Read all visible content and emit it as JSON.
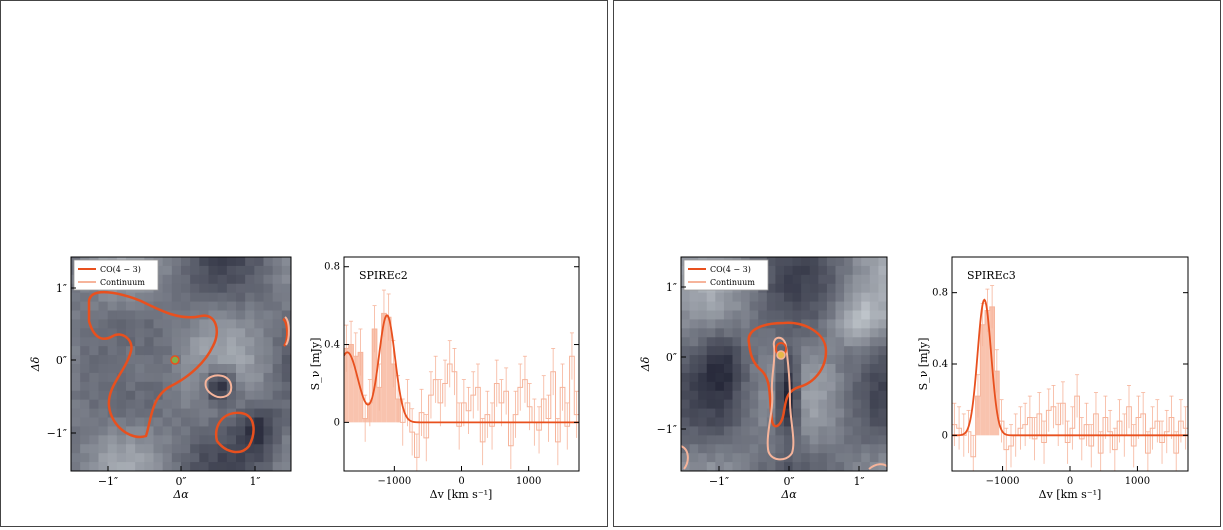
{
  "panels": [
    {
      "label": "SPIREc2",
      "map_axes": {
        "xlabel": "Δα",
        "ylabel": "Δδ",
        "xticks": [
          "−1″",
          "0″",
          "1″"
        ],
        "yticks": [
          "1″",
          "0″",
          "−1″"
        ],
        "legend": [
          "CO(4 − 3)",
          "Continuum"
        ]
      },
      "spectrum_axes": {
        "xlabel": "Δv [km s⁻¹]",
        "ylabel": "S_ν [mJy]",
        "xticks": [
          "−1000",
          "0",
          "1000"
        ],
        "yticks": [
          "0.8",
          "0.4",
          "0"
        ]
      }
    },
    {
      "label": "SPIREc3",
      "map_axes": {
        "xlabel": "Δα",
        "ylabel": "Δδ",
        "xticks": [
          "−1″",
          "0″",
          "1″"
        ],
        "yticks": [
          "1″",
          "0″",
          "−1″"
        ],
        "legend": [
          "CO(4 − 3)",
          "Continuum"
        ]
      },
      "spectrum_axes": {
        "xlabel": "Δv [km s⁻¹]",
        "ylabel": "S_ν [mJy]",
        "xticks": [
          "−1000",
          "0",
          "1000"
        ],
        "yticks": [
          "0.8",
          "0.4",
          "0"
        ]
      }
    }
  ],
  "colors": {
    "co_line": "#e8501e",
    "continuum": "#f6b49b",
    "hist_fill": "#f9c3ae",
    "marker": "#7fb04a"
  },
  "chart_data": [
    {
      "type": "bar",
      "title": "SPIREc2",
      "xlabel": "Δv [km s⁻¹]",
      "ylabel": "S_ν [mJy]",
      "xlim": [
        -1750,
        1750
      ],
      "ylim": [
        -0.25,
        0.85
      ],
      "bin_width": 70,
      "x_start": -1750,
      "values": [
        0.38,
        0.4,
        0.34,
        0.36,
        0.02,
        0.1,
        0.48,
        0.18,
        0.56,
        0.54,
        0.3,
        0.12,
        0.0,
        0.1,
        -0.05,
        -0.18,
        0.05,
        -0.08,
        0.14,
        0.22,
        0.1,
        0.2,
        0.3,
        0.26,
        -0.02,
        0.1,
        0.06,
        0.14,
        0.18,
        -0.1,
        0.04,
        -0.02,
        0.2,
        0.1,
        0.16,
        -0.12,
        0.04,
        0.18,
        0.22,
        0.08,
        0.0,
        -0.04,
        0.12,
        0.02,
        0.26,
        -0.1,
        0.18,
        -0.02,
        0.34,
        0.04
      ],
      "errors": 0.12,
      "fit": {
        "gaussians": [
          {
            "amp": 0.55,
            "center": -1110,
            "sigma": 120
          },
          {
            "amp": 0.36,
            "center": -1700,
            "sigma": 160
          }
        ]
      }
    },
    {
      "type": "bar",
      "title": "SPIREc3",
      "xlabel": "Δv [km s⁻¹]",
      "ylabel": "S_ν [mJy]",
      "xlim": [
        -1750,
        1750
      ],
      "ylim": [
        -0.2,
        1.0
      ],
      "bin_width": 70,
      "x_start": -1750,
      "values": [
        0.06,
        0.04,
        0.0,
        0.02,
        -0.12,
        0.22,
        0.62,
        0.7,
        0.72,
        0.36,
        0.08,
        -0.08,
        -0.06,
        0.0,
        0.04,
        0.06,
        0.1,
        -0.02,
        0.12,
        -0.04,
        0.14,
        0.16,
        0.06,
        0.18,
        -0.04,
        0.04,
        0.22,
        -0.02,
        0.06,
        -0.06,
        0.12,
        -0.1,
        0.1,
        0.02,
        -0.08,
        0.08,
        0.0,
        0.16,
        -0.06,
        0.1,
        0.12,
        -0.1,
        0.04,
        0.08,
        -0.04,
        0.02,
        0.1,
        -0.1,
        0.08,
        0.04
      ],
      "errors": 0.12,
      "fit": {
        "gaussians": [
          {
            "amp": 0.76,
            "center": -1270,
            "sigma": 100
          }
        ]
      }
    }
  ]
}
